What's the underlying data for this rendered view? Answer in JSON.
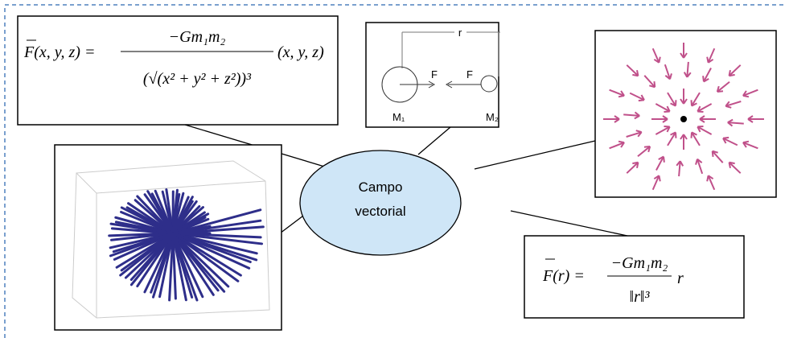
{
  "center": {
    "lines": [
      "Campo",
      "vectorial"
    ]
  },
  "formula_general": {
    "lhs": "F(x, y, z) =",
    "numerator": "−Gm₁m₂",
    "denominator": "(√(x² + y² + z²))³",
    "rhs": "(x, y, z)"
  },
  "formula_norm": {
    "lhs": "F(r) =",
    "numerator": "−Gm₁m₂",
    "denominator": "‖r‖³",
    "rhs": "r"
  },
  "masses_diagram": {
    "distance": "r",
    "force_left": "F",
    "force_right": "F",
    "mass_left": "M₁",
    "mass_right": "M₂"
  }
}
